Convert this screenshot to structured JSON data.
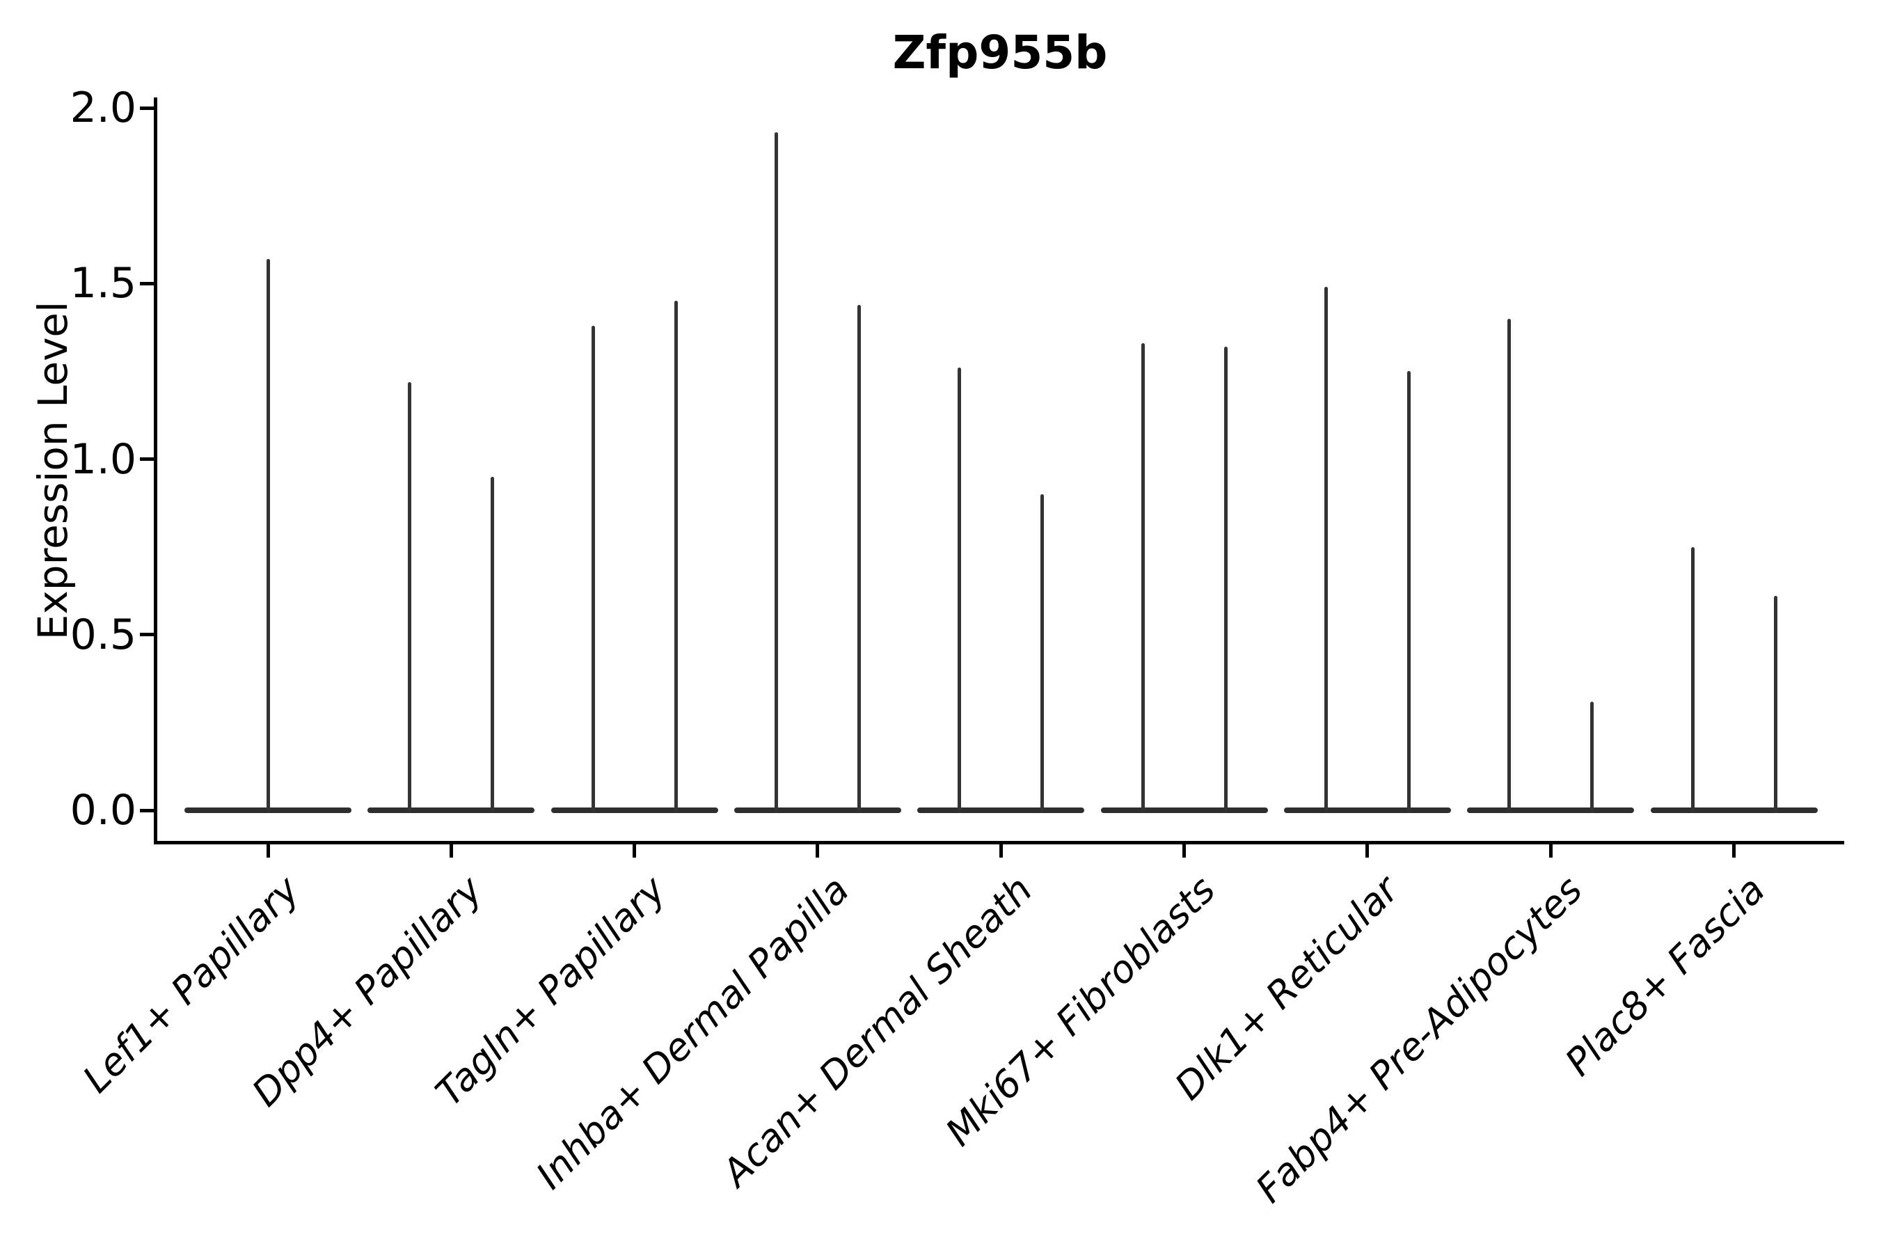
{
  "title": "Zfp955b",
  "y_axis": {
    "label": "Expression Level",
    "tick_labels": [
      "0.0",
      "0.5",
      "1.0",
      "1.5",
      "2.0"
    ]
  },
  "colors": {
    "violin": "#333333",
    "violin_base": "#2e2e2e",
    "axis": "#000000",
    "text": "#000000",
    "background": "#ffffff"
  },
  "chart_data": {
    "type": "violin",
    "title": "Zfp955b",
    "xlabel": "",
    "ylabel": "Expression Level",
    "grid": false,
    "legend": "none",
    "ylim": [
      -0.09,
      2.03
    ],
    "yticks": [
      0.0,
      0.5,
      1.0,
      1.5,
      2.0
    ],
    "baseline_value": 0.0,
    "categories": [
      "Lef1+ Papillary",
      "Dpp4+ Papillary",
      "Tagln+ Papillary",
      "Inhba+ Dermal Papilla",
      "Acan+ Dermal Sheath",
      "Mki67+ Fibroblasts",
      "Dlk1+ Reticular",
      "Fabp4+ Pre-Adipocytes",
      "Plac8+ Fascia"
    ],
    "series": [
      {
        "category": "Lef1+ Papillary",
        "violin_max": [
          1.57
        ]
      },
      {
        "category": "Dpp4+ Papillary",
        "violin_max": [
          1.22,
          0.95
        ]
      },
      {
        "category": "Tagln+ Papillary",
        "violin_max": [
          1.38,
          1.45
        ]
      },
      {
        "category": "Inhba+ Dermal Papilla",
        "violin_max": [
          1.93,
          1.44
        ]
      },
      {
        "category": "Acan+ Dermal Sheath",
        "violin_max": [
          1.26,
          0.9
        ]
      },
      {
        "category": "Mki67+ Fibroblasts",
        "violin_max": [
          1.33,
          1.32
        ]
      },
      {
        "category": "Dlk1+ Reticular",
        "violin_max": [
          1.49,
          1.25
        ]
      },
      {
        "category": "Fabp4+ Pre-Adipocytes",
        "violin_max": [
          1.4,
          0.31
        ]
      },
      {
        "category": "Plac8+ Fascia",
        "violin_max": [
          0.75,
          0.61
        ]
      }
    ]
  }
}
